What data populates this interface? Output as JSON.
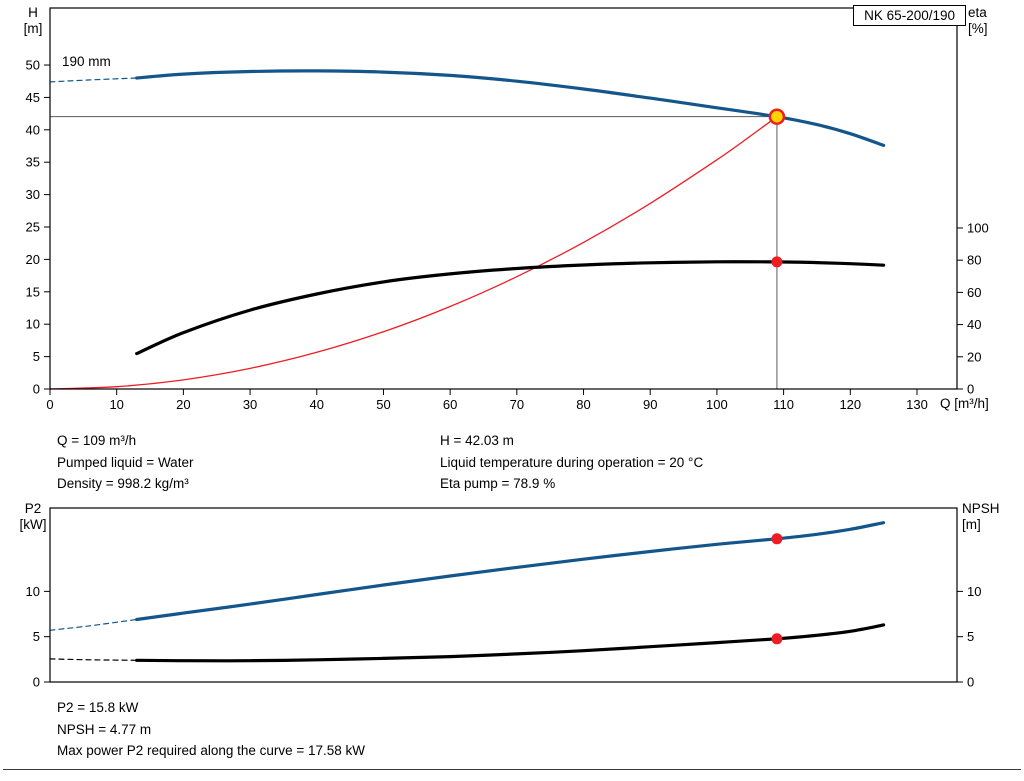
{
  "model_label": "NK 65-200/190",
  "mid_text": {
    "col1": [
      "Q = 109 m³/h",
      "Pumped liquid = Water",
      "Density = 998.2 kg/m³"
    ],
    "col2": [
      "H = 42.03 m",
      "Liquid temperature during operation = 20 °C",
      "Eta pump = 78.9 %"
    ]
  },
  "bottom_text": [
    "P2 = 15.8 kW",
    "NPSH = 4.77 m",
    "Max power P2 required along the curve = 17.58 kW"
  ],
  "chart_data": [
    {
      "type": "line",
      "title": "NK 65-200/190",
      "annotation": {
        "text": "190 mm"
      },
      "x_axis": {
        "label": "Q [m³/h]",
        "range": [
          0,
          136
        ],
        "ticks": [
          0,
          10,
          20,
          30,
          40,
          50,
          60,
          70,
          80,
          90,
          100,
          110,
          120,
          130
        ]
      },
      "y_left": {
        "name": "H",
        "unit": "[m]",
        "range": [
          0,
          58.8
        ],
        "ticks": [
          0,
          5,
          10,
          15,
          20,
          25,
          30,
          35,
          40,
          45,
          50
        ]
      },
      "y_right": {
        "name": "eta",
        "unit": "[%]",
        "range": [
          0,
          236.6
        ],
        "ticks": [
          0,
          20,
          40,
          60,
          80,
          100
        ]
      },
      "operating_point": {
        "Q": 109,
        "H": 42.03,
        "eta_pump_pct": 78.9
      },
      "guides": {
        "vline_x": 109,
        "hline_y": 42.03,
        "color": "#5a5a5a"
      },
      "series": [
        {
          "name": "head-curve-extension",
          "axis": "left",
          "color": "#14568c",
          "width": 1.2,
          "dash": "5 4",
          "points": [
            [
              0,
              47.4
            ],
            [
              6,
              47.7
            ],
            [
              13,
              48.0
            ]
          ]
        },
        {
          "name": "head-curve-190mm",
          "axis": "left",
          "color": "#14568c",
          "width": 3.2,
          "points": [
            [
              13,
              48.0
            ],
            [
              20,
              48.6
            ],
            [
              30,
              49.0
            ],
            [
              40,
              49.1
            ],
            [
              50,
              48.9
            ],
            [
              60,
              48.4
            ],
            [
              70,
              47.5
            ],
            [
              80,
              46.3
            ],
            [
              90,
              44.9
            ],
            [
              100,
              43.4
            ],
            [
              109,
              42.03
            ],
            [
              115,
              40.8
            ],
            [
              120,
              39.4
            ],
            [
              125,
              37.6
            ]
          ]
        },
        {
          "name": "system-curve",
          "axis": "left",
          "color": "#ee1c23",
          "width": 1.3,
          "points": [
            [
              0,
              0
            ],
            [
              10,
              0.35
            ],
            [
              20,
              1.41
            ],
            [
              30,
              3.18
            ],
            [
              40,
              5.66
            ],
            [
              50,
              8.84
            ],
            [
              60,
              12.73
            ],
            [
              70,
              17.33
            ],
            [
              80,
              22.63
            ],
            [
              90,
              28.65
            ],
            [
              100,
              35.37
            ],
            [
              105,
              39.03
            ],
            [
              109,
              42.03
            ]
          ]
        },
        {
          "name": "efficiency-curve",
          "axis": "right",
          "color": "#000000",
          "width": 3.2,
          "points": [
            [
              13,
              22
            ],
            [
              20,
              35
            ],
            [
              30,
              49
            ],
            [
              40,
              59
            ],
            [
              50,
              66.5
            ],
            [
              60,
              71.5
            ],
            [
              70,
              74.8
            ],
            [
              80,
              77.0
            ],
            [
              90,
              78.4
            ],
            [
              100,
              79.0
            ],
            [
              109,
              78.9
            ],
            [
              115,
              78.5
            ],
            [
              120,
              77.8
            ],
            [
              125,
              76.9
            ]
          ]
        }
      ],
      "markers": [
        {
          "name": "duty-point-marker",
          "x": 109,
          "y": 42.03,
          "axis": "left",
          "r": 7,
          "fill": "#ffd400",
          "stroke": "#ee1c23",
          "stroke_width": 2.5
        },
        {
          "name": "eta-point-marker",
          "x": 109,
          "y": 78.9,
          "axis": "right",
          "r": 5.5,
          "fill": "#ee1c23"
        }
      ]
    },
    {
      "type": "line",
      "title": "P2 / NPSH vs Q",
      "x_axis": {
        "label": "",
        "range": [
          0,
          136
        ],
        "ticks": []
      },
      "y_left": {
        "name": "P2",
        "unit": "[kW]",
        "range": [
          0,
          19.2
        ],
        "ticks": [
          0,
          5,
          10
        ]
      },
      "y_right": {
        "name": "NPSH",
        "unit": "[m]",
        "range": [
          0,
          19.2
        ],
        "ticks": [
          0,
          5,
          10
        ]
      },
      "operating_point": {
        "Q": 109,
        "P2_kW": 15.8,
        "NPSH_m": 4.77,
        "P2_max_kW": 17.58
      },
      "series": [
        {
          "name": "p2-curve-extension",
          "axis": "left",
          "color": "#14568c",
          "width": 1.2,
          "dash": "5 4",
          "points": [
            [
              0,
              5.7
            ],
            [
              6,
              6.2
            ],
            [
              13,
              6.9
            ]
          ]
        },
        {
          "name": "p2-curve",
          "axis": "left",
          "color": "#14568c",
          "width": 3.2,
          "points": [
            [
              13,
              6.9
            ],
            [
              20,
              7.6
            ],
            [
              30,
              8.6
            ],
            [
              40,
              9.65
            ],
            [
              50,
              10.7
            ],
            [
              60,
              11.7
            ],
            [
              70,
              12.65
            ],
            [
              80,
              13.55
            ],
            [
              90,
              14.4
            ],
            [
              100,
              15.2
            ],
            [
              109,
              15.8
            ],
            [
              115,
              16.3
            ],
            [
              120,
              16.85
            ],
            [
              125,
              17.58
            ]
          ]
        },
        {
          "name": "npsh-curve-extension",
          "axis": "right",
          "color": "#000000",
          "width": 1.2,
          "dash": "5 4",
          "points": [
            [
              0,
              2.55
            ],
            [
              6,
              2.45
            ],
            [
              13,
              2.4
            ]
          ]
        },
        {
          "name": "npsh-curve",
          "axis": "right",
          "color": "#000000",
          "width": 3.2,
          "points": [
            [
              13,
              2.4
            ],
            [
              20,
              2.35
            ],
            [
              30,
              2.35
            ],
            [
              40,
              2.45
            ],
            [
              50,
              2.6
            ],
            [
              60,
              2.8
            ],
            [
              70,
              3.1
            ],
            [
              80,
              3.45
            ],
            [
              90,
              3.9
            ],
            [
              100,
              4.35
            ],
            [
              109,
              4.77
            ],
            [
              115,
              5.15
            ],
            [
              120,
              5.6
            ],
            [
              125,
              6.3
            ]
          ]
        }
      ],
      "markers": [
        {
          "name": "p2-point-marker",
          "x": 109,
          "y": 15.8,
          "axis": "left",
          "r": 5.5,
          "fill": "#ee1c23"
        },
        {
          "name": "npsh-point-marker",
          "x": 109,
          "y": 4.77,
          "axis": "right",
          "r": 5.5,
          "fill": "#ee1c23"
        }
      ]
    }
  ]
}
